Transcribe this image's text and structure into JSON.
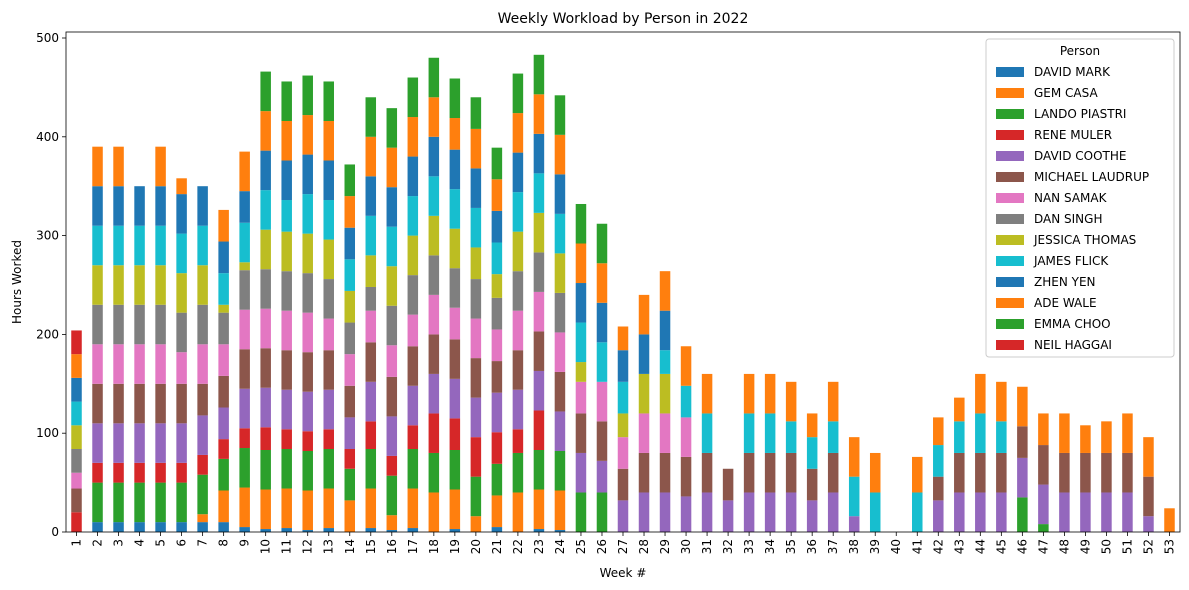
{
  "chart_data": {
    "type": "bar",
    "stacked": true,
    "title": "Weekly Workload by Person in 2022",
    "xlabel": "Week #",
    "ylabel": "Hours Worked",
    "ylim": [
      0,
      510
    ],
    "yticks": [
      0,
      100,
      200,
      300,
      400,
      500
    ],
    "legend": {
      "title": "Person",
      "placement": "top-right"
    },
    "categories": [
      "1",
      "2",
      "3",
      "4",
      "5",
      "6",
      "7",
      "8",
      "9",
      "10",
      "11",
      "12",
      "13",
      "14",
      "15",
      "16",
      "17",
      "18",
      "19",
      "20",
      "21",
      "22",
      "23",
      "24",
      "25",
      "26",
      "27",
      "28",
      "29",
      "30",
      "31",
      "32",
      "33",
      "34",
      "35",
      "36",
      "37",
      "38",
      "39",
      "40",
      "41",
      "42",
      "43",
      "44",
      "45",
      "46",
      "47",
      "48",
      "49",
      "50",
      "51",
      "52",
      "53"
    ],
    "series": [
      {
        "name": "DAVID MARK",
        "color": "#1f77b4",
        "values": [
          0,
          10,
          10,
          10,
          10,
          10,
          10,
          10,
          5,
          3,
          4,
          2,
          4,
          0,
          4,
          2,
          4,
          0,
          3,
          0,
          5,
          0,
          3,
          2,
          0,
          0,
          0,
          0,
          0,
          0,
          0,
          0,
          0,
          0,
          0,
          0,
          0,
          0,
          0,
          0,
          0,
          0,
          0,
          0,
          0,
          0,
          0,
          0,
          0,
          0,
          0,
          0,
          0
        ]
      },
      {
        "name": "GEM CASA",
        "color": "#ff7f0e",
        "values": [
          0,
          0,
          0,
          0,
          0,
          0,
          8,
          32,
          40,
          40,
          40,
          40,
          40,
          32,
          40,
          15,
          40,
          40,
          40,
          16,
          32,
          40,
          40,
          40,
          0,
          0,
          0,
          0,
          0,
          0,
          0,
          0,
          0,
          0,
          0,
          0,
          0,
          0,
          0,
          0,
          0,
          0,
          0,
          0,
          0,
          0,
          0,
          0,
          0,
          0,
          0,
          0,
          0
        ]
      },
      {
        "name": "LANDO PIASTRI",
        "color": "#2ca02c",
        "values": [
          0,
          40,
          40,
          40,
          40,
          40,
          40,
          32,
          40,
          40,
          40,
          40,
          40,
          32,
          40,
          40,
          40,
          40,
          40,
          40,
          32,
          40,
          40,
          40,
          40,
          40,
          0,
          0,
          0,
          0,
          0,
          0,
          0,
          0,
          0,
          0,
          0,
          0,
          0,
          0,
          0,
          0,
          0,
          0,
          0,
          35,
          8,
          0,
          0,
          0,
          0,
          0,
          0
        ]
      },
      {
        "name": "RENE MULER",
        "color": "#d62728",
        "values": [
          20,
          20,
          20,
          20,
          20,
          20,
          20,
          20,
          20,
          23,
          20,
          20,
          20,
          20,
          28,
          20,
          24,
          40,
          32,
          40,
          32,
          24,
          40,
          0,
          0,
          0,
          0,
          0,
          0,
          0,
          0,
          0,
          0,
          0,
          0,
          0,
          0,
          0,
          0,
          0,
          0,
          0,
          0,
          0,
          0,
          0,
          0,
          0,
          0,
          0,
          0,
          0,
          0
        ]
      },
      {
        "name": "DAVID COOTHE",
        "color": "#9467bd",
        "values": [
          0,
          40,
          40,
          40,
          40,
          40,
          40,
          32,
          40,
          40,
          40,
          40,
          40,
          32,
          40,
          40,
          40,
          40,
          40,
          40,
          40,
          40,
          40,
          40,
          40,
          32,
          32,
          40,
          40,
          36,
          40,
          32,
          40,
          40,
          40,
          32,
          40,
          16,
          0,
          0,
          0,
          32,
          40,
          40,
          40,
          40,
          40,
          40,
          40,
          40,
          40,
          16,
          0
        ]
      },
      {
        "name": "MICHAEL LAUDRUP",
        "color": "#8c564b",
        "values": [
          24,
          40,
          40,
          40,
          40,
          40,
          32,
          32,
          40,
          40,
          40,
          40,
          40,
          32,
          40,
          40,
          40,
          40,
          40,
          40,
          32,
          40,
          40,
          40,
          40,
          40,
          32,
          40,
          40,
          40,
          40,
          32,
          40,
          40,
          40,
          32,
          40,
          0,
          0,
          0,
          0,
          24,
          40,
          40,
          40,
          32,
          40,
          40,
          40,
          40,
          40,
          40,
          0
        ]
      },
      {
        "name": "NAN SAMAK",
        "color": "#e377c2",
        "values": [
          16,
          40,
          40,
          40,
          40,
          32,
          40,
          32,
          40,
          40,
          40,
          40,
          32,
          32,
          32,
          32,
          32,
          40,
          32,
          40,
          32,
          40,
          40,
          40,
          32,
          40,
          32,
          40,
          40,
          40,
          0,
          0,
          0,
          0,
          0,
          0,
          0,
          0,
          0,
          0,
          0,
          0,
          0,
          0,
          0,
          0,
          0,
          0,
          0,
          0,
          0,
          0,
          0
        ]
      },
      {
        "name": "DAN SINGH",
        "color": "#7f7f7f",
        "values": [
          24,
          40,
          40,
          40,
          40,
          40,
          40,
          32,
          40,
          40,
          40,
          40,
          40,
          32,
          24,
          40,
          40,
          40,
          40,
          40,
          32,
          40,
          40,
          40,
          0,
          0,
          0,
          0,
          0,
          0,
          0,
          0,
          0,
          0,
          0,
          0,
          0,
          0,
          0,
          0,
          0,
          0,
          0,
          0,
          0,
          0,
          0,
          0,
          0,
          0,
          0,
          0,
          0
        ]
      },
      {
        "name": "JESSICA THOMAS",
        "color": "#bcbd22",
        "values": [
          24,
          40,
          40,
          40,
          40,
          40,
          40,
          8,
          8,
          40,
          40,
          40,
          40,
          32,
          32,
          40,
          40,
          40,
          40,
          32,
          24,
          40,
          40,
          40,
          20,
          0,
          24,
          40,
          40,
          0,
          0,
          0,
          0,
          0,
          0,
          0,
          0,
          0,
          0,
          0,
          0,
          0,
          0,
          0,
          0,
          0,
          0,
          0,
          0,
          0,
          0,
          0,
          0
        ]
      },
      {
        "name": "JAMES FLICK",
        "color": "#17becf",
        "values": [
          24,
          40,
          40,
          40,
          40,
          40,
          40,
          32,
          40,
          40,
          32,
          40,
          40,
          32,
          40,
          40,
          40,
          40,
          40,
          40,
          32,
          40,
          40,
          40,
          40,
          40,
          32,
          0,
          24,
          32,
          40,
          0,
          40,
          40,
          32,
          32,
          32,
          40,
          40,
          0,
          40,
          32,
          32,
          40,
          32,
          0,
          0,
          0,
          0,
          0,
          0,
          0,
          0
        ]
      },
      {
        "name": "ZHEN YEN",
        "color": "#1f77b4",
        "values": [
          24,
          40,
          40,
          40,
          40,
          40,
          40,
          32,
          32,
          40,
          40,
          40,
          40,
          32,
          40,
          40,
          40,
          40,
          40,
          40,
          32,
          40,
          40,
          40,
          40,
          40,
          32,
          40,
          40,
          0,
          0,
          0,
          0,
          0,
          0,
          0,
          0,
          0,
          0,
          0,
          0,
          0,
          0,
          0,
          0,
          0,
          0,
          0,
          0,
          0,
          0,
          0,
          0
        ]
      },
      {
        "name": "ADE WALE",
        "color": "#ff7f0e",
        "values": [
          24,
          40,
          40,
          0,
          40,
          16,
          0,
          32,
          40,
          40,
          40,
          40,
          40,
          32,
          40,
          40,
          40,
          40,
          32,
          40,
          32,
          40,
          40,
          40,
          40,
          40,
          24,
          40,
          40,
          40,
          40,
          0,
          40,
          40,
          40,
          24,
          40,
          40,
          40,
          0,
          36,
          28,
          24,
          40,
          40,
          40,
          32,
          40,
          28,
          32,
          40,
          40,
          24
        ]
      },
      {
        "name": "EMMA CHOO",
        "color": "#2ca02c",
        "values": [
          0,
          0,
          0,
          0,
          0,
          0,
          0,
          0,
          0,
          40,
          40,
          40,
          40,
          32,
          40,
          40,
          40,
          40,
          40,
          32,
          32,
          40,
          40,
          40,
          40,
          40,
          0,
          0,
          0,
          0,
          0,
          0,
          0,
          0,
          0,
          0,
          0,
          0,
          0,
          0,
          0,
          0,
          0,
          0,
          0,
          0,
          0,
          0,
          0,
          0,
          0,
          0,
          0
        ]
      },
      {
        "name": "NEIL HAGGAI",
        "color": "#d62728",
        "values": [
          24,
          0,
          0,
          0,
          0,
          0,
          0,
          0,
          0,
          0,
          0,
          0,
          0,
          0,
          0,
          0,
          0,
          0,
          0,
          0,
          0,
          0,
          0,
          0,
          0,
          0,
          0,
          0,
          0,
          0,
          0,
          0,
          0,
          0,
          0,
          0,
          0,
          0,
          0,
          0,
          0,
          0,
          0,
          0,
          0,
          0,
          0,
          0,
          0,
          0,
          0,
          0,
          0
        ]
      }
    ]
  }
}
